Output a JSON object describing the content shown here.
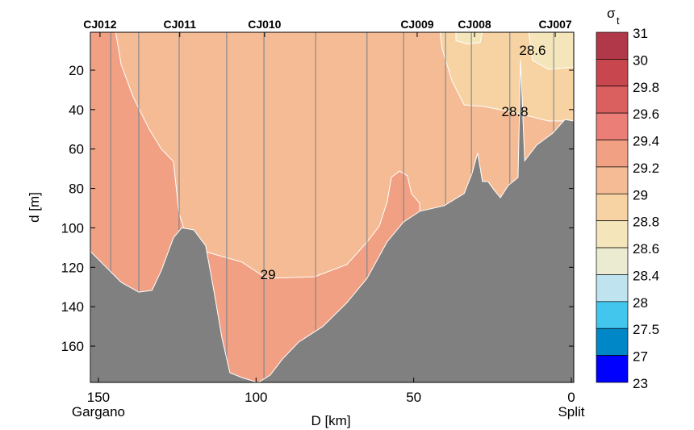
{
  "chart_data": {
    "type": "contour-section",
    "xlabel": "D [km]",
    "ylabel": "d [m]",
    "xlim": [
      152.5,
      -0.8
    ],
    "ylim": [
      0,
      178.5
    ],
    "xticks": [
      150,
      100,
      50,
      0
    ],
    "yticks": [
      20,
      40,
      60,
      80,
      100,
      120,
      140,
      160
    ],
    "x_end_labels": [
      {
        "x": 150,
        "text": "Gargano"
      },
      {
        "x": 0,
        "text": "Split"
      }
    ],
    "stations": [
      {
        "name": "CJ012",
        "x": 149.5
      },
      {
        "name": "CJ011",
        "x": 124.2
      },
      {
        "name": "CJ010",
        "x": 97.3
      },
      {
        "name": "CJ009",
        "x": 48.9
      },
      {
        "name": "CJ008",
        "x": 30.7
      },
      {
        "name": "CJ007",
        "x": 5.1
      }
    ],
    "profile_lines_x": [
      146.1,
      137.2,
      124.4,
      109.3,
      97.5,
      81.1,
      64.8,
      53.2,
      39.9,
      31.7,
      19.5,
      5.6
    ],
    "background_level": "29-29.2",
    "regions": [
      {
        "level": "29.2-29.4",
        "color": "#f2a083",
        "points": [
          [
            144.6,
            0
          ],
          [
            142.8,
            17.1
          ],
          [
            139,
            33.5
          ],
          [
            133.9,
            49.9
          ],
          [
            130,
            60.1
          ],
          [
            126.2,
            66.3
          ],
          [
            125.4,
            78.5
          ],
          [
            124.4,
            92.9
          ],
          [
            122.3,
            103.1
          ],
          [
            116,
            112.1
          ],
          [
            104.4,
            117.4
          ],
          [
            96.7,
            125.6
          ],
          [
            81.4,
            124.8
          ],
          [
            71.2,
            118.6
          ],
          [
            64.8,
            107.2
          ],
          [
            60.9,
            99
          ],
          [
            58.4,
            86.7
          ],
          [
            57.1,
            74.4
          ],
          [
            54.5,
            71.2
          ],
          [
            52,
            73.6
          ],
          [
            50.7,
            82.6
          ],
          [
            48.1,
            87.5
          ],
          [
            48.1,
            180
          ],
          [
            152.5,
            180
          ],
          [
            152.5,
            0
          ]
        ]
      },
      {
        "level": "28.8-29",
        "color": "#f7d3a4",
        "points": [
          [
            41.7,
            0
          ],
          [
            41,
            8.9
          ],
          [
            37.9,
            25.3
          ],
          [
            34,
            37.6
          ],
          [
            27.6,
            38.4
          ],
          [
            17.4,
            41.7
          ],
          [
            7.2,
            45.8
          ],
          [
            -0.8,
            45.8
          ],
          [
            -0.8,
            0
          ]
        ]
      },
      {
        "level": "28.6-28.8",
        "color": "#f4e5ba",
        "points": [
          [
            36.6,
            0
          ],
          [
            36.6,
            5
          ],
          [
            32.8,
            6.7
          ],
          [
            28.9,
            5.9
          ],
          [
            28.2,
            0
          ]
        ]
      },
      {
        "level": "28.6-28.8",
        "color": "#f4e5ba",
        "points": [
          [
            13.6,
            0
          ],
          [
            12.3,
            15
          ],
          [
            7.2,
            19.6
          ],
          [
            -0.8,
            18.4
          ],
          [
            -0.8,
            0
          ]
        ]
      }
    ],
    "contour_labels": [
      {
        "text": "29",
        "x": 96.2,
        "y": 123.6
      },
      {
        "text": "28.6",
        "x": 12.3,
        "y": 9.8
      },
      {
        "text": "28.8",
        "x": 17.9,
        "y": 40.9
      }
    ],
    "bathymetry": [
      [
        152.5,
        112
      ],
      [
        142.8,
        127.6
      ],
      [
        137.2,
        132.6
      ],
      [
        133,
        131.7
      ],
      [
        130,
        121.5
      ],
      [
        126.2,
        105
      ],
      [
        123.6,
        100
      ],
      [
        119.8,
        101
      ],
      [
        116,
        109
      ],
      [
        113.4,
        131.7
      ],
      [
        110.8,
        156
      ],
      [
        108.3,
        173.5
      ],
      [
        104.4,
        176
      ],
      [
        99.3,
        178.5
      ],
      [
        95.5,
        174.7
      ],
      [
        91.6,
        166.5
      ],
      [
        86.5,
        158
      ],
      [
        78.8,
        150
      ],
      [
        71.2,
        138
      ],
      [
        64.8,
        125.6
      ],
      [
        58.4,
        107
      ],
      [
        53.2,
        97
      ],
      [
        48.1,
        91.6
      ],
      [
        40.4,
        88.8
      ],
      [
        34,
        82.6
      ],
      [
        31.5,
        72.4
      ],
      [
        29.7,
        62
      ],
      [
        28.2,
        76.5
      ],
      [
        26.4,
        76.5
      ],
      [
        24.6,
        80.6
      ],
      [
        22.5,
        84.7
      ],
      [
        20,
        78.5
      ],
      [
        16.9,
        74.4
      ],
      [
        16.1,
        15
      ],
      [
        14.8,
        66
      ],
      [
        11,
        58
      ],
      [
        5.9,
        52
      ],
      [
        2,
        45
      ],
      [
        -0.8,
        45.8
      ]
    ],
    "colorbar": {
      "title": "σ",
      "title_sub": "t",
      "levels": [
        "31",
        "30",
        "29.8",
        "29.6",
        "29.4",
        "29.2",
        "29",
        "28.8",
        "28.6",
        "28.4",
        "28",
        "27.5",
        "27",
        "23"
      ],
      "colors": [
        "#b03848",
        "#c8474f",
        "#da6060",
        "#eb7f78",
        "#f2a083",
        "#f5bb94",
        "#f7d3a4",
        "#f4e5ba",
        "#ebebd2",
        "#bfe3ef",
        "#42c6ee",
        "#0087c8",
        "#0000ff"
      ]
    },
    "colors": {
      "background_fill": "#f5bb94",
      "bathymetry": "#808080",
      "profile_line": "#6f7f8f"
    }
  }
}
